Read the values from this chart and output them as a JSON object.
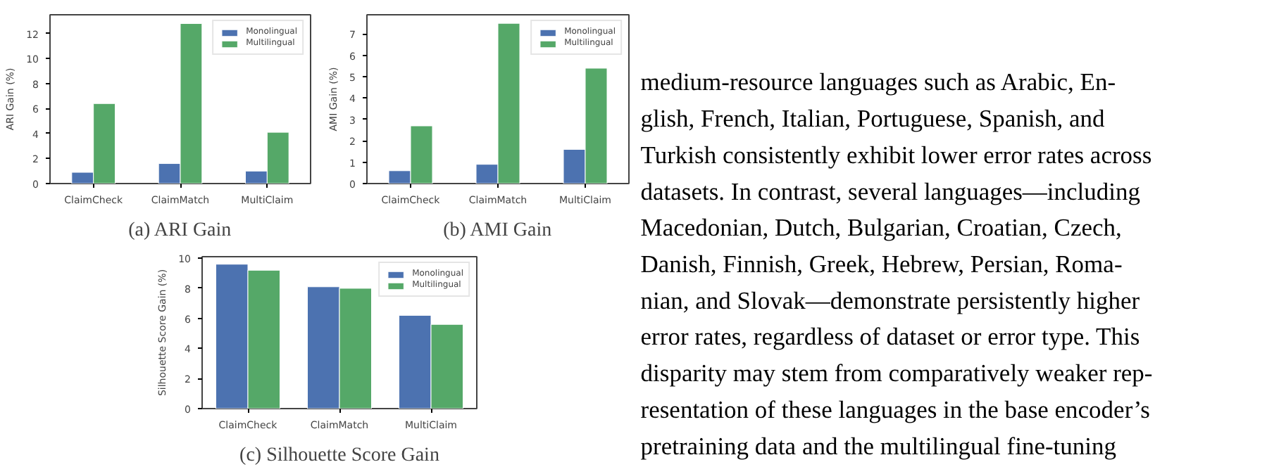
{
  "chart_data": [
    {
      "type": "bar",
      "ylabel": "ARI Gain (%)",
      "categories": [
        "ClaimCheck",
        "ClaimMatch",
        "MultiClaim"
      ],
      "ylim": [
        0,
        13.5
      ],
      "yticks": [
        0,
        2,
        4,
        6,
        8,
        10,
        12
      ],
      "legend": "top right",
      "grid": false,
      "annotations": [
        "(a) ARI Gain"
      ],
      "series": [
        {
          "name": "Monolingual",
          "color": "#4c72b0",
          "values": [
            0.9,
            1.6,
            1.0
          ]
        },
        {
          "name": "Multilingual",
          "color": "#55a868",
          "values": [
            6.4,
            12.8,
            4.1
          ]
        }
      ]
    },
    {
      "type": "bar",
      "ylabel": "AMI Gain (%)",
      "categories": [
        "ClaimCheck",
        "ClaimMatch",
        "MultiClaim"
      ],
      "ylim": [
        0,
        7.9
      ],
      "yticks": [
        0,
        1,
        2,
        3,
        4,
        5,
        6,
        7
      ],
      "legend": "top right",
      "grid": false,
      "annotations": [
        "(b) AMI Gain"
      ],
      "series": [
        {
          "name": "Monolingual",
          "color": "#4c72b0",
          "values": [
            0.6,
            0.9,
            1.6
          ]
        },
        {
          "name": "Multilingual",
          "color": "#55a868",
          "values": [
            2.7,
            7.5,
            5.4
          ]
        }
      ]
    },
    {
      "type": "bar",
      "ylabel": "Silhouette Score Gain (%)",
      "categories": [
        "ClaimCheck",
        "ClaimMatch",
        "MultiClaim"
      ],
      "ylim": [
        0,
        10.1
      ],
      "yticks": [
        0,
        2,
        4,
        6,
        8,
        10
      ],
      "legend": "top right",
      "grid": false,
      "annotations": [
        "(c) Silhouette Score Gain"
      ],
      "series": [
        {
          "name": "Monolingual",
          "color": "#4c72b0",
          "values": [
            9.6,
            8.1,
            6.2
          ]
        },
        {
          "name": "Multilingual",
          "color": "#55a868",
          "values": [
            9.2,
            8.0,
            5.6
          ]
        }
      ]
    },
    {
      "type": "other",
      "annotations": [
        "medium-resource languages such as Arabic, En-",
        "glish, French, Italian, Portuguese, Spanish, and",
        "Turkish consistently exhibit lower error rates across",
        "datasets. In contrast, several languages—including",
        "Macedonian, Dutch, Bulgarian, Croatian, Czech,",
        "Danish, Finnish, Greek, Hebrew, Persian, Roma-",
        "nian, and Slovak—demonstrate persistently higher",
        "error rates, regardless of dataset or error type. This",
        "disparity may stem from comparatively weaker rep-",
        "resentation of these languages in the base encoder’s",
        "pretraining data and the multilingual fine-tuning"
      ]
    }
  ]
}
